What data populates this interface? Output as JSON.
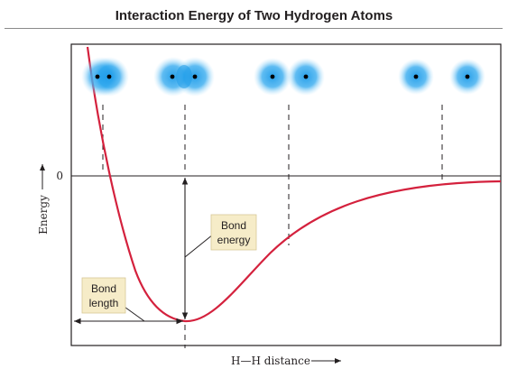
{
  "title": "Interaction Energy of Two Hydrogen Atoms",
  "axes": {
    "y_label": "Energy",
    "y_zero_label": "0",
    "x_label": "H—H distance"
  },
  "annotations": {
    "bond_energy": [
      "Bond",
      "energy"
    ],
    "bond_length": [
      "Bond",
      "length"
    ]
  },
  "colors": {
    "curve": "#d4213d",
    "atom_glow": "#1e9be8",
    "label_box": "#f6ecc8",
    "axis": "#231f20"
  },
  "atom_pairs": [
    {
      "stage": "overlapping-too-close"
    },
    {
      "stage": "bonded-equilibrium"
    },
    {
      "stage": "approaching"
    },
    {
      "stage": "far-apart"
    }
  ]
}
